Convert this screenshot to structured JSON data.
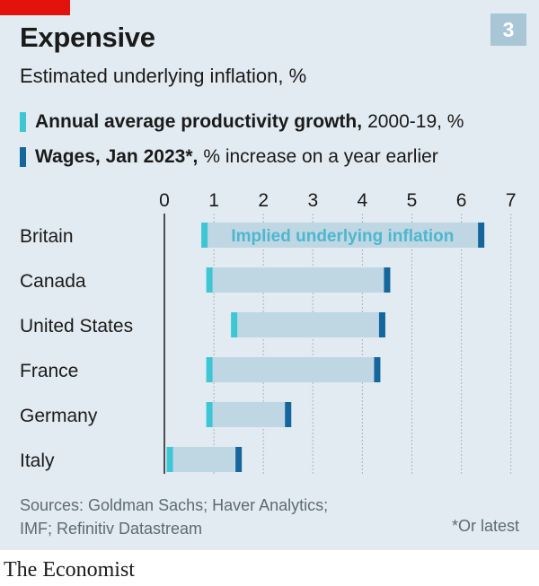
{
  "title": "Expensive",
  "subtitle": "Estimated underlying inflation, %",
  "badge": "3",
  "legend": [
    {
      "strong": "Annual average productivity growth,",
      "rest": "2000-19, %",
      "color": "#3dc6d3"
    },
    {
      "strong": "Wages, Jan 2023*,",
      "rest": "% increase on a year earlier",
      "color": "#15669c"
    }
  ],
  "bar_label": "Implied underlying inflation",
  "source": "Sources: Goldman Sachs; Haver Analytics;\nIMF; Refinitiv Datastream",
  "note": "*Or latest",
  "brand": "The Economist",
  "colors": {
    "panel": "#e1ebf1",
    "bar_fill": "#bfd6e3",
    "productivity": "#3dc6d3",
    "wages": "#15669c",
    "grid": "#aab8c0",
    "text": "#1a1a1a",
    "bar_label": "#4db7cf"
  },
  "chart_data": {
    "type": "bar",
    "orientation": "horizontal",
    "categories": [
      "Britain",
      "Canada",
      "United States",
      "France",
      "Germany",
      "Italy"
    ],
    "series": [
      {
        "name": "Annual average productivity growth, 2000-19, %",
        "values": [
          0.8,
          0.9,
          1.4,
          0.9,
          0.9,
          0.1
        ]
      },
      {
        "name": "Wages, Jan 2023*, % increase on a year earlier",
        "values": [
          6.4,
          4.5,
          4.4,
          4.3,
          2.5,
          1.5
        ]
      }
    ],
    "xticks": [
      "0",
      "1",
      "2",
      "3",
      "4",
      "5",
      "6",
      "7"
    ],
    "xlim": [
      0,
      7
    ],
    "grid": true
  }
}
